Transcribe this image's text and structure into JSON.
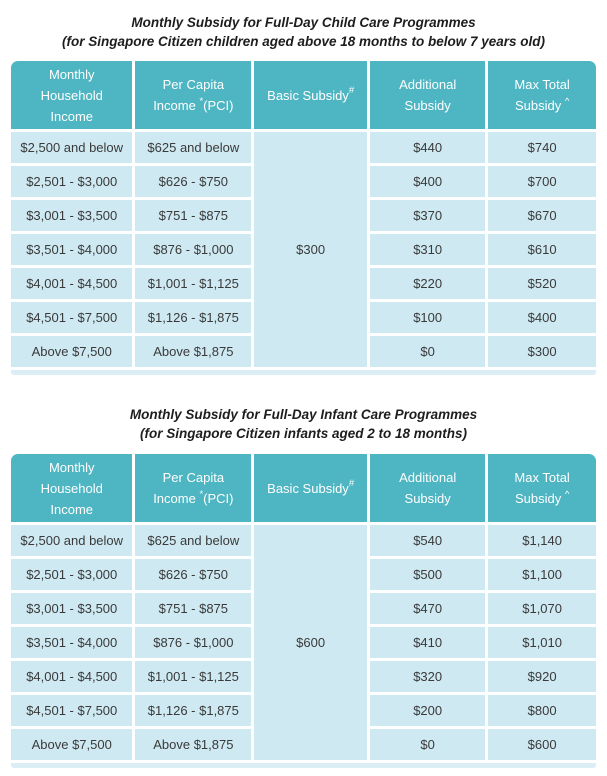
{
  "colors": {
    "header_background": "#4eb5c2",
    "header_text": "#ffffff",
    "row_background": "#cee9f2",
    "body_text": "#3a3a3a",
    "separator": "#ffffff"
  },
  "columns": [
    {
      "text": "Monthly Household Income"
    },
    {
      "text": "Per Capita Income ",
      "sup": "*",
      "after": "(PCI)"
    },
    {
      "text": "Basic Subsidy",
      "sup": "#"
    },
    {
      "text": "Additional Subsidy"
    },
    {
      "text": "Max Total Subsidy ",
      "sup": "^"
    }
  ],
  "tables": [
    {
      "title": "Monthly Subsidy for Full-Day Child Care Programmes",
      "subtitle": "(for Singapore Citizen children aged above 18 months to below 7 years old)",
      "basic_subsidy": "$300",
      "rows": [
        {
          "household": "$2,500 and below",
          "pci": "$625 and below",
          "additional": "$440",
          "max_total": "$740"
        },
        {
          "household": "$2,501 - $3,000",
          "pci": "$626 - $750",
          "additional": "$400",
          "max_total": "$700"
        },
        {
          "household": "$3,001 - $3,500",
          "pci": "$751 - $875",
          "additional": "$370",
          "max_total": "$670"
        },
        {
          "household": "$3,501 - $4,000",
          "pci": "$876 - $1,000",
          "additional": "$310",
          "max_total": "$610"
        },
        {
          "household": "$4,001 - $4,500",
          "pci": "$1,001 - $1,125",
          "additional": "$220",
          "max_total": "$520"
        },
        {
          "household": "$4,501 - $7,500",
          "pci": "$1,126 - $1,875",
          "additional": "$100",
          "max_total": "$400"
        },
        {
          "household": "Above $7,500",
          "pci": "Above $1,875",
          "additional": "$0",
          "max_total": "$300"
        }
      ]
    },
    {
      "title": "Monthly Subsidy for Full-Day Infant Care Programmes",
      "subtitle": "(for Singapore Citizen infants aged 2 to 18 months)",
      "basic_subsidy": "$600",
      "rows": [
        {
          "household": "$2,500 and below",
          "pci": "$625 and below",
          "additional": "$540",
          "max_total": "$1,140"
        },
        {
          "household": "$2,501 - $3,000",
          "pci": "$626 - $750",
          "additional": "$500",
          "max_total": "$1,100"
        },
        {
          "household": "$3,001 - $3,500",
          "pci": "$751 - $875",
          "additional": "$470",
          "max_total": "$1,070"
        },
        {
          "household": "$3,501 - $4,000",
          "pci": "$876 - $1,000",
          "additional": "$410",
          "max_total": "$1,010"
        },
        {
          "household": "$4,001 - $4,500",
          "pci": "$1,001 - $1,125",
          "additional": "$320",
          "max_total": "$920"
        },
        {
          "household": "$4,501 - $7,500",
          "pci": "$1,126 - $1,875",
          "additional": "$200",
          "max_total": "$800"
        },
        {
          "household": "Above $7,500",
          "pci": "Above $1,875",
          "additional": "$0",
          "max_total": "$600"
        }
      ]
    }
  ]
}
